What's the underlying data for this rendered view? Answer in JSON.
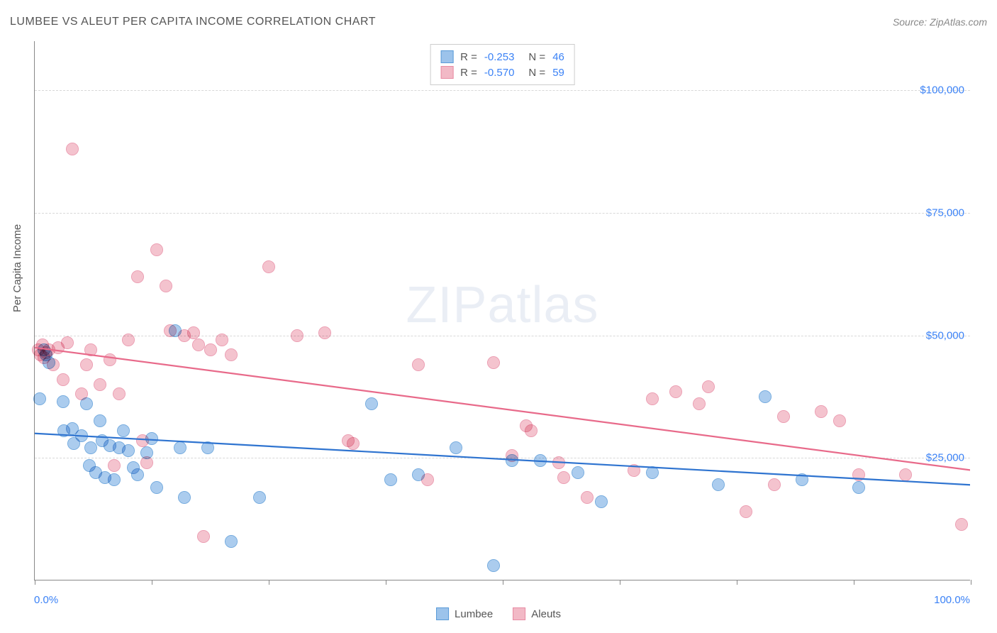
{
  "header": {
    "title": "LUMBEE VS ALEUT PER CAPITA INCOME CORRELATION CHART",
    "source": "Source: ZipAtlas.com"
  },
  "ylabel": "Per Capita Income",
  "watermark": {
    "bold": "ZIP",
    "light": "atlas"
  },
  "chart": {
    "type": "scatter",
    "background_color": "#ffffff",
    "grid_color": "#d8d8d8",
    "axis_color": "#888888",
    "xlim": [
      0,
      100
    ],
    "ylim": [
      0,
      110000
    ],
    "xtick_positions": [
      0,
      12.5,
      25,
      37.5,
      50,
      62.5,
      75,
      87.5,
      100
    ],
    "xtick_labels": {
      "0": "0.0%",
      "100": "100.0%"
    },
    "ytick_positions": [
      25000,
      50000,
      75000,
      100000
    ],
    "ytick_labels": [
      "$25,000",
      "$50,000",
      "$75,000",
      "$100,000"
    ],
    "marker_radius": 9,
    "marker_border_width": 1.2,
    "marker_fill_opacity": 0.35,
    "series": [
      {
        "name": "Lumbee",
        "color_fill": "#9cc3eb",
        "color_border": "#5a9bd8",
        "trend_color": "#2f74d0",
        "trend_width": 2.2,
        "trend_y_at_x0": 30000,
        "trend_y_at_x100": 19500,
        "R": "-0.253",
        "N": "46",
        "points": [
          [
            0.5,
            37000
          ],
          [
            1,
            47000
          ],
          [
            1.2,
            46000
          ],
          [
            1.5,
            44500
          ],
          [
            3,
            36500
          ],
          [
            3.1,
            30500
          ],
          [
            4,
            31000
          ],
          [
            4.2,
            28000
          ],
          [
            5,
            29500
          ],
          [
            5.5,
            36000
          ],
          [
            5.8,
            23500
          ],
          [
            6,
            27000
          ],
          [
            6.5,
            22000
          ],
          [
            7,
            32500
          ],
          [
            7.2,
            28500
          ],
          [
            7.5,
            21000
          ],
          [
            8,
            27500
          ],
          [
            8.5,
            20500
          ],
          [
            9,
            27000
          ],
          [
            9.5,
            30500
          ],
          [
            10,
            26500
          ],
          [
            10.5,
            23000
          ],
          [
            11,
            21500
          ],
          [
            12,
            26000
          ],
          [
            12.5,
            29000
          ],
          [
            13,
            19000
          ],
          [
            15,
            51000
          ],
          [
            15.5,
            27000
          ],
          [
            16,
            17000
          ],
          [
            18.5,
            27000
          ],
          [
            21,
            8000
          ],
          [
            24,
            17000
          ],
          [
            36,
            36000
          ],
          [
            38,
            20500
          ],
          [
            41,
            21500
          ],
          [
            45,
            27000
          ],
          [
            49,
            3000
          ],
          [
            51,
            24500
          ],
          [
            54,
            24500
          ],
          [
            58,
            22000
          ],
          [
            60.5,
            16000
          ],
          [
            66,
            22000
          ],
          [
            73,
            19500
          ],
          [
            78,
            37500
          ],
          [
            82,
            20500
          ],
          [
            88,
            19000
          ]
        ]
      },
      {
        "name": "Aleuts",
        "color_fill": "#f2b9c6",
        "color_border": "#e88ba3",
        "trend_color": "#e86a8a",
        "trend_width": 2.2,
        "trend_y_at_x0": 47500,
        "trend_y_at_x100": 22500,
        "R": "-0.570",
        "N": "59",
        "points": [
          [
            0.4,
            47000
          ],
          [
            0.6,
            46000
          ],
          [
            0.8,
            48000
          ],
          [
            1,
            45500
          ],
          [
            1.2,
            46500
          ],
          [
            1.5,
            47000
          ],
          [
            2,
            44000
          ],
          [
            2.5,
            47500
          ],
          [
            3,
            41000
          ],
          [
            3.5,
            48500
          ],
          [
            4,
            88000
          ],
          [
            5,
            38000
          ],
          [
            5.5,
            44000
          ],
          [
            6,
            47000
          ],
          [
            7,
            40000
          ],
          [
            8,
            45000
          ],
          [
            8.5,
            23500
          ],
          [
            9,
            38000
          ],
          [
            10,
            49000
          ],
          [
            11,
            62000
          ],
          [
            11.5,
            28500
          ],
          [
            12,
            24000
          ],
          [
            13,
            67500
          ],
          [
            14,
            60000
          ],
          [
            14.5,
            51000
          ],
          [
            16,
            50000
          ],
          [
            17,
            50500
          ],
          [
            17.5,
            48000
          ],
          [
            18,
            9000
          ],
          [
            18.8,
            47000
          ],
          [
            20,
            49000
          ],
          [
            21,
            46000
          ],
          [
            25,
            64000
          ],
          [
            28,
            50000
          ],
          [
            31,
            50500
          ],
          [
            33.5,
            28500
          ],
          [
            34,
            28000
          ],
          [
            41,
            44000
          ],
          [
            42,
            20500
          ],
          [
            49,
            44500
          ],
          [
            51,
            25500
          ],
          [
            52.5,
            31500
          ],
          [
            53,
            30500
          ],
          [
            56,
            24000
          ],
          [
            56.5,
            21000
          ],
          [
            59,
            17000
          ],
          [
            64,
            22500
          ],
          [
            66,
            37000
          ],
          [
            68.5,
            38500
          ],
          [
            71,
            36000
          ],
          [
            72,
            39500
          ],
          [
            76,
            14000
          ],
          [
            79,
            19500
          ],
          [
            80,
            33500
          ],
          [
            84,
            34500
          ],
          [
            86,
            32500
          ],
          [
            88,
            21500
          ],
          [
            93,
            21500
          ],
          [
            99,
            11500
          ]
        ]
      }
    ]
  },
  "legend_bottom": [
    {
      "label": "Lumbee",
      "fill": "#9cc3eb",
      "border": "#5a9bd8"
    },
    {
      "label": "Aleuts",
      "fill": "#f2b9c6",
      "border": "#e88ba3"
    }
  ]
}
